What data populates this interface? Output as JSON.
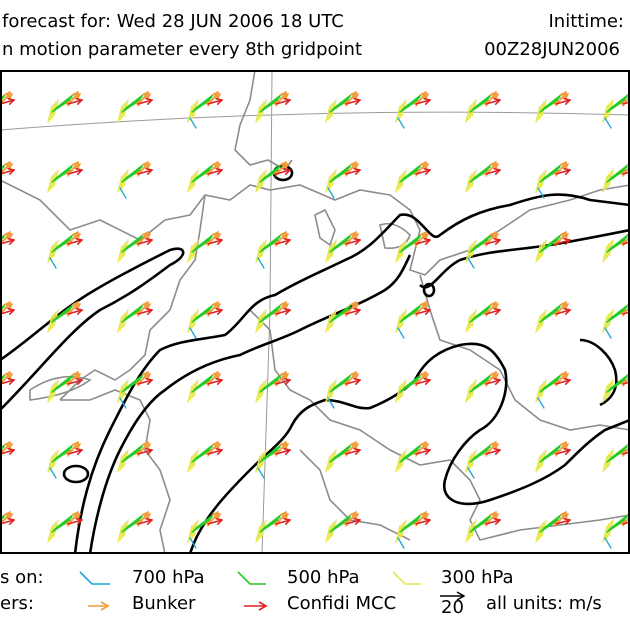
{
  "header": {
    "line1": "forecast for:  Wed 28 JUN 2006 18 UTC",
    "line1_right": "Inittime:",
    "line2": "n motion parameter every 8th gridpoint",
    "line2_right": "00Z28JUN2006"
  },
  "legend": {
    "row1_prefix": "s on:",
    "row2_prefix": "ers:",
    "items": [
      {
        "label": "700 hPa",
        "color": "#1aa6d9"
      },
      {
        "label": "500 hPa",
        "color": "#22cc22"
      },
      {
        "label": "300 hPa",
        "color": "#e6e64d"
      },
      {
        "label": "Bunker",
        "color": "#f39c3c"
      },
      {
        "label": "Confidi MCC",
        "color": "#e02020"
      }
    ],
    "scale_value": "20",
    "units_text": "all units: m/s"
  },
  "colors": {
    "contour": "#000000",
    "borders": "#8c8c8c",
    "frame": "#000000"
  }
}
